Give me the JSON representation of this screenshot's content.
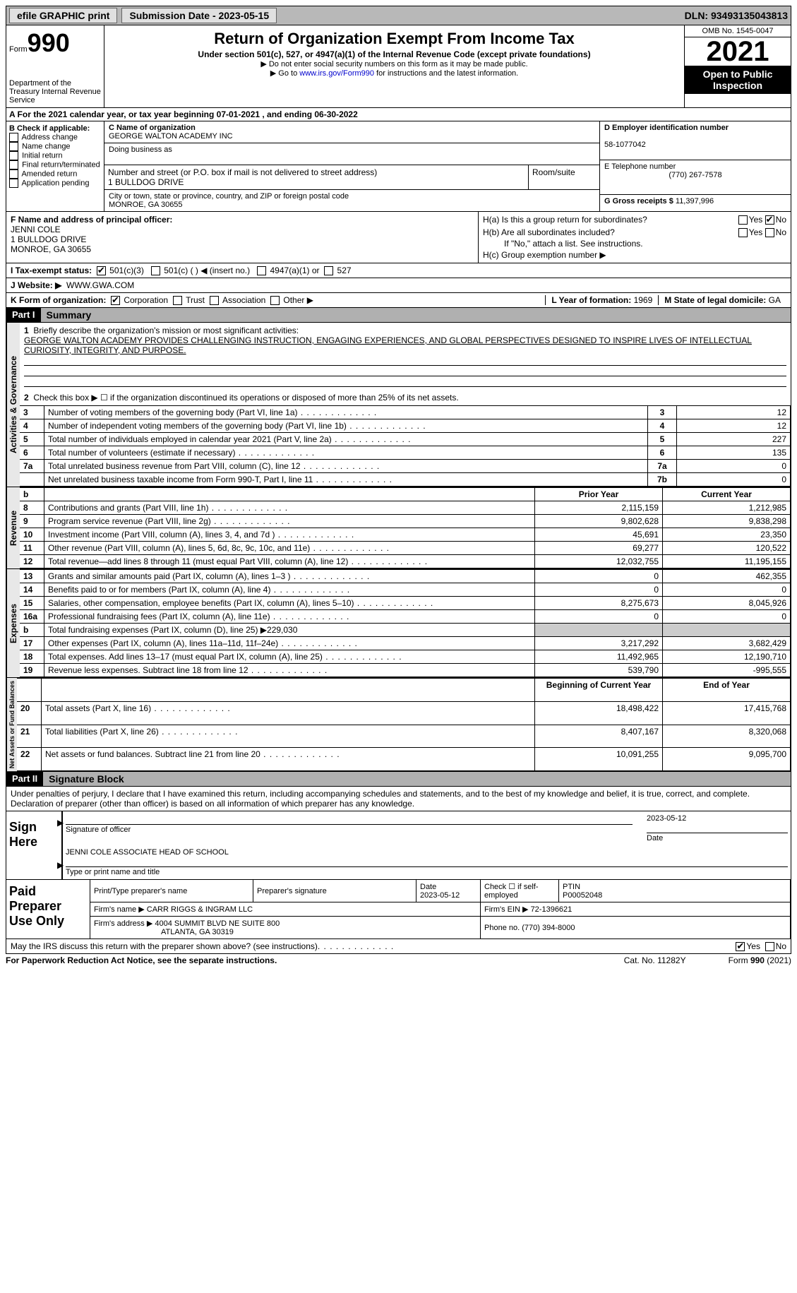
{
  "topbar": {
    "efile": "efile GRAPHIC print",
    "submission": "Submission Date - 2023-05-15",
    "dln": "DLN: 93493135043813"
  },
  "header": {
    "form": "Form",
    "form_num": "990",
    "dept": "Department of the Treasury\nInternal Revenue Service",
    "title": "Return of Organization Exempt From Income Tax",
    "sub": "Under section 501(c), 527, or 4947(a)(1) of the Internal Revenue Code (except private foundations)",
    "note1": "▶ Do not enter social security numbers on this form as it may be made public.",
    "note2_pre": "▶ Go to ",
    "note2_link": "www.irs.gov/Form990",
    "note2_post": " for instructions and the latest information.",
    "omb": "OMB No. 1545-0047",
    "year": "2021",
    "open": "Open to Public Inspection"
  },
  "row_a": "A For the 2021 calendar year, or tax year beginning 07-01-2021    , and ending 06-30-2022",
  "section_b": {
    "title": "B Check if applicable:",
    "items": [
      "Address change",
      "Name change",
      "Initial return",
      "Final return/terminated",
      "Amended return",
      "Application pending"
    ]
  },
  "section_c": {
    "name_lbl": "C Name of organization",
    "name": "GEORGE WALTON ACADEMY INC",
    "dba_lbl": "Doing business as",
    "dba": "",
    "addr_lbl": "Number and street (or P.O. box if mail is not delivered to street address)",
    "room_lbl": "Room/suite",
    "addr": "1 BULLDOG DRIVE",
    "city_lbl": "City or town, state or province, country, and ZIP or foreign postal code",
    "city": "MONROE, GA  30655"
  },
  "section_d": {
    "ein_lbl": "D Employer identification number",
    "ein": "58-1077042",
    "tel_lbl": "E Telephone number",
    "tel": "(770) 267-7578",
    "gross_lbl": "G Gross receipts $",
    "gross": "11,397,996"
  },
  "section_f": {
    "lbl": "F  Name and address of principal officer:",
    "name": "JENNI COLE",
    "addr1": "1 BULLDOG DRIVE",
    "addr2": "MONROE, GA   30655"
  },
  "section_h": {
    "ha": "H(a)  Is this a group return for subordinates?",
    "hb": "H(b)  Are all subordinates included?",
    "hb_note": "If \"No,\" attach a list. See instructions.",
    "hc": "H(c)  Group exemption number ▶"
  },
  "row_i": {
    "lbl": "I   Tax-exempt status:",
    "opt1": "501(c)(3)",
    "opt2": "501(c) (   ) ◀ (insert no.)",
    "opt3": "4947(a)(1) or",
    "opt4": "527"
  },
  "row_j": {
    "lbl": "J   Website: ▶",
    "val": "WWW.GWA.COM"
  },
  "row_k": {
    "lbl": "K Form of organization:",
    "opts": [
      "Corporation",
      "Trust",
      "Association",
      "Other ▶"
    ],
    "l_lbl": "L Year of formation:",
    "l_val": "1969",
    "m_lbl": "M State of legal domicile:",
    "m_val": "GA"
  },
  "part1": {
    "num": "Part I",
    "title": "Summary"
  },
  "summary": {
    "q1": "Briefly describe the organization's mission or most significant activities:",
    "mission": "GEORGE WALTON ACADEMY PROVIDES CHALLENGING INSTRUCTION, ENGAGING EXPERIENCES, AND GLOBAL PERSPECTIVES DESIGNED TO INSPIRE LIVES OF INTELLECTUAL CURIOSITY, INTEGRITY, AND PURPOSE.",
    "q2": "Check this box ▶ ☐ if the organization discontinued its operations or disposed of more than 25% of its net assets."
  },
  "gov_rows": [
    {
      "n": "3",
      "t": "Number of voting members of the governing body (Part VI, line 1a)",
      "box": "3",
      "v": "12"
    },
    {
      "n": "4",
      "t": "Number of independent voting members of the governing body (Part VI, line 1b)",
      "box": "4",
      "v": "12"
    },
    {
      "n": "5",
      "t": "Total number of individuals employed in calendar year 2021 (Part V, line 2a)",
      "box": "5",
      "v": "227"
    },
    {
      "n": "6",
      "t": "Total number of volunteers (estimate if necessary)",
      "box": "6",
      "v": "135"
    },
    {
      "n": "7a",
      "t": "Total unrelated business revenue from Part VIII, column (C), line 12",
      "box": "7a",
      "v": "0"
    },
    {
      "n": "",
      "t": "Net unrelated business taxable income from Form 990-T, Part I, line 11",
      "box": "7b",
      "v": "0"
    }
  ],
  "rev_hdr": {
    "b": "b",
    "py": "Prior Year",
    "cy": "Current Year"
  },
  "rev_rows": [
    {
      "n": "8",
      "t": "Contributions and grants (Part VIII, line 1h)",
      "py": "2,115,159",
      "cy": "1,212,985"
    },
    {
      "n": "9",
      "t": "Program service revenue (Part VIII, line 2g)",
      "py": "9,802,628",
      "cy": "9,838,298"
    },
    {
      "n": "10",
      "t": "Investment income (Part VIII, column (A), lines 3, 4, and 7d )",
      "py": "45,691",
      "cy": "23,350"
    },
    {
      "n": "11",
      "t": "Other revenue (Part VIII, column (A), lines 5, 6d, 8c, 9c, 10c, and 11e)",
      "py": "69,277",
      "cy": "120,522"
    },
    {
      "n": "12",
      "t": "Total revenue—add lines 8 through 11 (must equal Part VIII, column (A), line 12)",
      "py": "12,032,755",
      "cy": "11,195,155"
    }
  ],
  "exp_rows": [
    {
      "n": "13",
      "t": "Grants and similar amounts paid (Part IX, column (A), lines 1–3 )",
      "py": "0",
      "cy": "462,355"
    },
    {
      "n": "14",
      "t": "Benefits paid to or for members (Part IX, column (A), line 4)",
      "py": "0",
      "cy": "0"
    },
    {
      "n": "15",
      "t": "Salaries, other compensation, employee benefits (Part IX, column (A), lines 5–10)",
      "py": "8,275,673",
      "cy": "8,045,926"
    },
    {
      "n": "16a",
      "t": "Professional fundraising fees (Part IX, column (A), line 11e)",
      "py": "0",
      "cy": "0"
    },
    {
      "n": "b",
      "t": "Total fundraising expenses (Part IX, column (D), line 25) ▶229,030",
      "py": "",
      "cy": "",
      "shade": true
    },
    {
      "n": "17",
      "t": "Other expenses (Part IX, column (A), lines 11a–11d, 11f–24e)",
      "py": "3,217,292",
      "cy": "3,682,429"
    },
    {
      "n": "18",
      "t": "Total expenses. Add lines 13–17 (must equal Part IX, column (A), line 25)",
      "py": "11,492,965",
      "cy": "12,190,710"
    },
    {
      "n": "19",
      "t": "Revenue less expenses. Subtract line 18 from line 12",
      "py": "539,790",
      "cy": "-995,555"
    }
  ],
  "net_hdr": {
    "py": "Beginning of Current Year",
    "cy": "End of Year"
  },
  "net_rows": [
    {
      "n": "20",
      "t": "Total assets (Part X, line 16)",
      "py": "18,498,422",
      "cy": "17,415,768"
    },
    {
      "n": "21",
      "t": "Total liabilities (Part X, line 26)",
      "py": "8,407,167",
      "cy": "8,320,068"
    },
    {
      "n": "22",
      "t": "Net assets or fund balances. Subtract line 21 from line 20",
      "py": "10,091,255",
      "cy": "9,095,700"
    }
  ],
  "vtabs": {
    "gov": "Activities & Governance",
    "rev": "Revenue",
    "exp": "Expenses",
    "net": "Net Assets or Fund Balances"
  },
  "part2": {
    "num": "Part II",
    "title": "Signature Block"
  },
  "sig": {
    "penalty": "Under penalties of perjury, I declare that I have examined this return, including accompanying schedules and statements, and to the best of my knowledge and belief, it is true, correct, and complete. Declaration of preparer (other than officer) is based on all information of which preparer has any knowledge.",
    "sign_here": "Sign Here",
    "sig_officer": "Signature of officer",
    "date": "Date",
    "date_val": "2023-05-12",
    "name_title": "JENNI COLE  ASSOCIATE HEAD OF SCHOOL",
    "type_name": "Type or print name and title"
  },
  "prep": {
    "lbl": "Paid Preparer Use Only",
    "print_name": "Print/Type preparer's name",
    "sig": "Preparer's signature",
    "date_lbl": "Date",
    "date": "2023-05-12",
    "check_lbl": "Check ☐ if self-employed",
    "ptin_lbl": "PTIN",
    "ptin": "P00052048",
    "firm_name_lbl": "Firm's name     ▶",
    "firm_name": "CARR RIGGS & INGRAM LLC",
    "firm_ein_lbl": "Firm's EIN ▶",
    "firm_ein": "72-1396621",
    "firm_addr_lbl": "Firm's address ▶",
    "firm_addr1": "4004 SUMMIT BLVD NE SUITE 800",
    "firm_addr2": "ATLANTA, GA  30319",
    "phone_lbl": "Phone no.",
    "phone": "(770) 394-8000"
  },
  "discuss": "May the IRS discuss this return with the preparer shown above? (see instructions)",
  "footer": {
    "left": "For Paperwork Reduction Act Notice, see the separate instructions.",
    "mid": "Cat. No. 11282Y",
    "right": "Form 990 (2021)"
  }
}
